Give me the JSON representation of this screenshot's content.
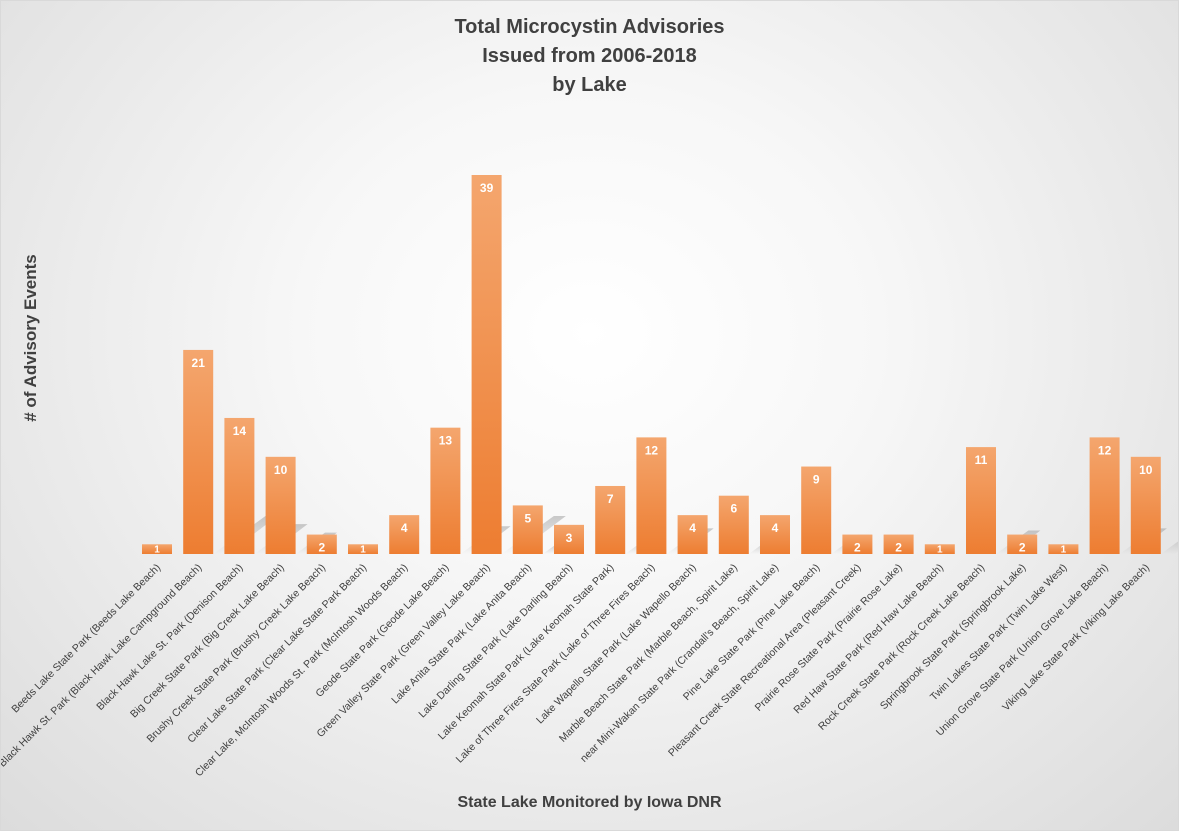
{
  "chart_data": {
    "type": "bar",
    "title": [
      "Total Microcystin Advisories",
      "Issued from 2006-2018",
      "by Lake"
    ],
    "xlabel": "State Lake Monitored by Iowa DNR",
    "ylabel": "# of Advisory Events",
    "ylim": [
      0,
      39
    ],
    "grid": false,
    "legend": "none",
    "bar_color": "#ED7D31",
    "bar_color_light": "#F4A66E",
    "label_color": "#ffffff",
    "categories": [
      "Beeds Lake State Park (Beeds Lake Beach)",
      "Black Hawk St. Park (Black Hawk Lake Campground Beach)",
      "Black Hawk Lake St. Park (Denison Beach)",
      "Big Creek State Park (Big Creek Lake Beach)",
      "Brushy Creek State Park (Brushy Creek Lake Beach)",
      "Clear Lake State Park (Clear Lake State Park Beach)",
      "Clear Lake, McIntosh Woods St. Park (McIntosh Woods Beach)",
      "Geode State Park (Geode Lake Beach)",
      "Green Valley State Park (Green Valley Lake Beach)",
      "Lake Anita State Park (Lake Anita Beach)",
      "Lake Darling State Park (Lake Darling Beach)",
      "Lake Keomah State Park (Lake Keomah State Park)",
      "Lake of Three Fires State Park (Lake of Three Fires Beach)",
      "Lake Wapello State Park (Lake Wapello Beach)",
      "Marble Beach State Park (Marble Beach, Spirit Lake)",
      "near Mini-Wakan State Park (Crandall's Beach, Spirit Lake)",
      "Pine Lake State Park (Pine Lake Beach)",
      "Pleasant Creek State Recreational Area (Pleasant Creek)",
      "Prairie Rose State Park (Prairie Rose Lake)",
      "Red Haw State Park (Red Haw Lake Beach)",
      "Rock Creek State Park (Rock Creek Lake Beach)",
      "Springbrook State Park (Springbrook Lake)",
      "Twin Lakes State Park (Twin Lake West)",
      "Union Grove State Park (Union Grove Lake Beach)",
      "Viking Lake State Park (Viking Lake Beach)"
    ],
    "values": [
      1,
      21,
      14,
      10,
      2,
      1,
      4,
      13,
      39,
      5,
      3,
      7,
      12,
      4,
      6,
      4,
      9,
      2,
      2,
      1,
      11,
      2,
      1,
      12,
      10
    ],
    "data_labels": true
  }
}
